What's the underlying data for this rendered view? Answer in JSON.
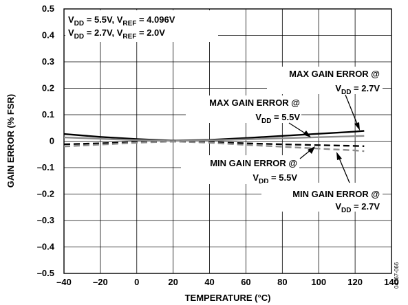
{
  "chart_data": {
    "type": "line",
    "xlabel": "TEMPERATURE (°C)",
    "ylabel": "GAIN ERROR (% FSR)",
    "xlim": [
      -40,
      140
    ],
    "ylim": [
      -0.5,
      0.5
    ],
    "x_ticks": [
      "–40",
      "–20",
      "0",
      "20",
      "40",
      "60",
      "80",
      "100",
      "120",
      "140"
    ],
    "y_ticks": [
      "0.5",
      "0.4",
      "0.3",
      "0.2",
      "0.1",
      "0",
      "–0.1",
      "–0.2",
      "–0.3",
      "–0.4",
      "–0.5"
    ],
    "grid": true,
    "legend_lines": [
      {
        "main": "V",
        "sub1": "DD",
        "mid": " = 5.5V, V",
        "sub2": "REF",
        "tail": " = 4.096V"
      },
      {
        "main": "V",
        "sub1": "DD",
        "mid": " = 2.7V, V",
        "sub2": "REF",
        "tail": " = 2.0V"
      }
    ],
    "series": [
      {
        "label_line1": "MAX GAIN ERROR @",
        "label_line2": "V",
        "label_sub": "DD",
        "label_tail": " = 2.7V",
        "color": "#000000",
        "style": "solid",
        "x": [
          -40,
          -20,
          0,
          20,
          40,
          60,
          80,
          100,
          120,
          125
        ],
        "y": [
          0.027,
          0.016,
          0.008,
          0.002,
          0.005,
          0.012,
          0.02,
          0.028,
          0.036,
          0.039
        ]
      },
      {
        "label_line1": "MAX GAIN ERROR @",
        "label_line2": "V",
        "label_sub": "DD",
        "label_tail": " = 5.5V",
        "color": "#8c8c8c",
        "style": "solid",
        "x": [
          -40,
          -20,
          0,
          20,
          40,
          60,
          80,
          100,
          120,
          125
        ],
        "y": [
          0.014,
          0.009,
          0.004,
          0.001,
          0.003,
          0.007,
          0.011,
          0.015,
          0.019,
          0.02
        ]
      },
      {
        "label_line1": "MIN GAIN ERROR @",
        "label_line2": "V",
        "label_sub": "DD",
        "label_tail": " = 5.5V",
        "color": "#000000",
        "style": "dashed",
        "x": [
          -40,
          -20,
          0,
          20,
          40,
          60,
          80,
          100,
          120,
          125
        ],
        "y": [
          -0.012,
          -0.008,
          -0.004,
          -0.001,
          -0.004,
          -0.008,
          -0.012,
          -0.015,
          -0.018,
          -0.019
        ]
      },
      {
        "label_line1": "MIN GAIN ERROR @",
        "label_line2": "V",
        "label_sub": "DD",
        "label_tail": " = 2.7V",
        "color": "#8c8c8c",
        "style": "dashed",
        "x": [
          -40,
          -20,
          0,
          20,
          40,
          60,
          80,
          100,
          120,
          125
        ],
        "y": [
          -0.02,
          -0.013,
          -0.006,
          -0.001,
          -0.006,
          -0.014,
          -0.021,
          -0.028,
          -0.035,
          -0.038
        ]
      }
    ]
  },
  "figure_id": "04767-066"
}
